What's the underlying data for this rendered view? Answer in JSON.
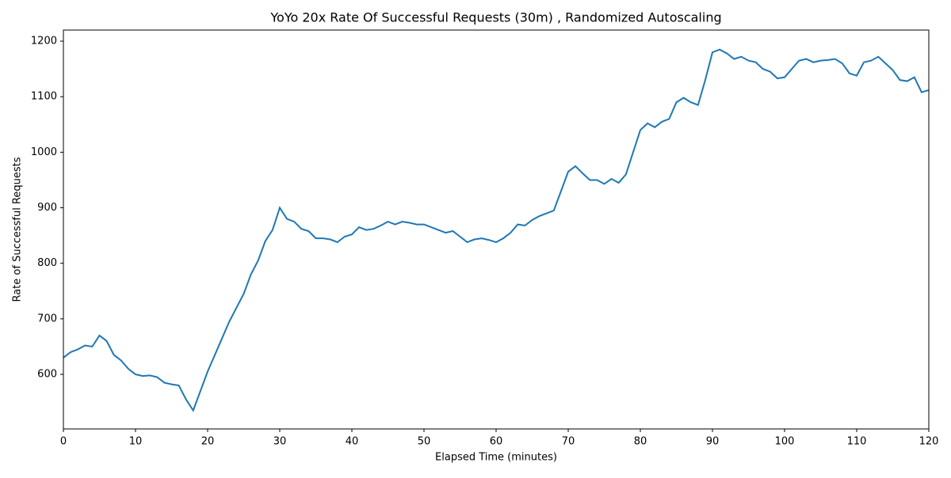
{
  "chart_data": {
    "type": "line",
    "title": "YoYo 20x Rate Of Successful Requests (30m) , Randomized Autoscaling",
    "x_label": "Elapsed Time (minutes)",
    "y_label": "Rate of Successful Requests",
    "x": [
      0,
      1,
      2,
      3,
      4,
      5,
      6,
      7,
      8,
      9,
      10,
      11,
      12,
      13,
      14,
      15,
      16,
      17,
      18,
      19,
      20,
      21,
      22,
      23,
      24,
      25,
      26,
      27,
      28,
      29,
      30,
      31,
      32,
      33,
      34,
      35,
      36,
      37,
      38,
      39,
      40,
      41,
      42,
      43,
      44,
      45,
      46,
      47,
      48,
      49,
      50,
      51,
      52,
      53,
      54,
      55,
      56,
      57,
      58,
      59,
      60,
      61,
      62,
      63,
      64,
      65,
      66,
      67,
      68,
      69,
      70,
      71,
      72,
      73,
      74,
      75,
      76,
      77,
      78,
      79,
      80,
      81,
      82,
      83,
      84,
      85,
      86,
      87,
      88,
      89,
      90,
      91,
      92,
      93,
      94,
      95,
      96,
      97,
      98,
      99,
      100,
      101,
      102,
      103,
      104,
      105,
      106,
      107,
      108,
      109,
      110,
      111,
      112,
      113,
      114,
      115,
      116,
      117,
      118,
      119,
      120
    ],
    "series": [
      {
        "name": "Rate of Successful Requests",
        "color": "#1f77b4",
        "values": [
          630,
          640,
          645,
          652,
          650,
          670,
          660,
          635,
          625,
          610,
          600,
          597,
          598,
          595,
          585,
          582,
          580,
          555,
          535,
          570,
          605,
          635,
          665,
          695,
          720,
          745,
          780,
          805,
          840,
          860,
          900,
          880,
          875,
          862,
          858,
          845,
          845,
          843,
          838,
          848,
          852,
          865,
          860,
          862,
          868,
          875,
          870,
          875,
          873,
          870,
          870,
          865,
          860,
          855,
          858,
          848,
          838,
          843,
          845,
          842,
          838,
          845,
          855,
          870,
          868,
          878,
          885,
          890,
          895,
          930,
          965,
          975,
          962,
          950,
          950,
          943,
          952,
          945,
          960,
          1000,
          1040,
          1052,
          1045,
          1055,
          1060,
          1090,
          1098,
          1090,
          1085,
          1130,
          1180,
          1185,
          1178,
          1168,
          1172,
          1165,
          1162,
          1150,
          1145,
          1133,
          1135,
          1150,
          1165,
          1168,
          1162,
          1165,
          1166,
          1168,
          1160,
          1142,
          1138,
          1162,
          1165,
          1172,
          1160,
          1148,
          1130,
          1128,
          1135,
          1108,
          1112
        ]
      }
    ],
    "xlim": [
      0,
      120
    ],
    "xticks": [
      0,
      10,
      20,
      30,
      40,
      50,
      60,
      70,
      80,
      90,
      100,
      110,
      120
    ],
    "ylim": [
      501.7,
      1220
    ],
    "yticks": [
      600,
      700,
      800,
      900,
      1000,
      1100,
      1200
    ],
    "grid": false
  }
}
